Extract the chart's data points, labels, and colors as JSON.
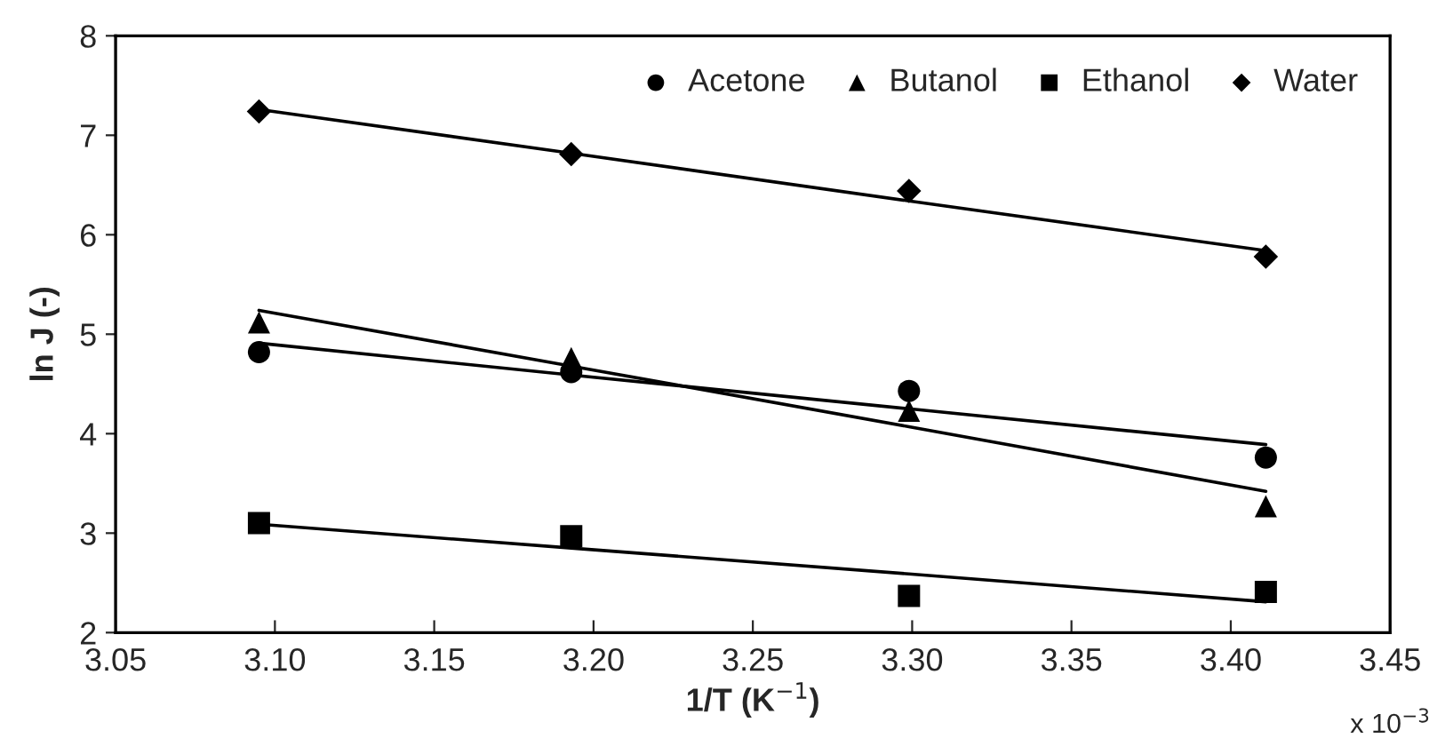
{
  "chart_data": {
    "type": "scatter",
    "xlabel": "1/T (K$^{−1}$)",
    "ylabel": "ln J (-)",
    "x": [
      3.095,
      3.193,
      3.299,
      3.411
    ],
    "series": [
      {
        "name": "Acetone",
        "color": "#000000",
        "marker": "circle",
        "values": [
          4.82,
          4.62,
          4.43,
          3.76
        ]
      },
      {
        "name": "Butanol",
        "color": "#000000",
        "marker": "triangle",
        "values": [
          5.12,
          4.76,
          4.23,
          3.27
        ]
      },
      {
        "name": "Ethanol",
        "color": "#000000",
        "marker": "square",
        "values": [
          3.1,
          2.97,
          2.37,
          2.41
        ]
      },
      {
        "name": "Water",
        "color": "#000000",
        "marker": "diamond",
        "values": [
          7.24,
          6.81,
          6.44,
          5.78
        ]
      },
      {
        "type": "line",
        "color": "#000000",
        "values": [
          4.91,
          4.59,
          4.25,
          3.89
        ]
      },
      {
        "type": "line",
        "color": "#000000",
        "values": [
          5.24,
          4.68,
          4.07,
          3.42
        ]
      },
      {
        "type": "line",
        "color": "#000000",
        "values": [
          3.09,
          2.85,
          2.59,
          2.31
        ]
      },
      {
        "type": "line",
        "color": "#000000",
        "values": [
          7.26,
          6.82,
          6.34,
          5.84
        ]
      }
    ],
    "xlim": [
      3.05,
      3.45
    ],
    "ylim": [
      2,
      8
    ],
    "xticks": [
      {
        "value": 3.05,
        "label": "3.05"
      },
      {
        "value": 3.1,
        "label": "3.10"
      },
      {
        "value": 3.15,
        "label": "3.15"
      },
      {
        "value": 3.2,
        "label": "3.20"
      },
      {
        "value": 3.25,
        "label": "3.25"
      },
      {
        "value": 3.3,
        "label": "3.30"
      },
      {
        "value": 3.35,
        "label": "3.35"
      },
      {
        "value": 3.4,
        "label": "3.40"
      },
      {
        "value": 3.45,
        "label": "3.45"
      }
    ],
    "yticks": [
      2,
      3,
      4,
      5,
      6,
      7,
      8
    ],
    "annotations": [
      "x 10$^{−3}$"
    ],
    "legend": "top right",
    "grid": false
  }
}
